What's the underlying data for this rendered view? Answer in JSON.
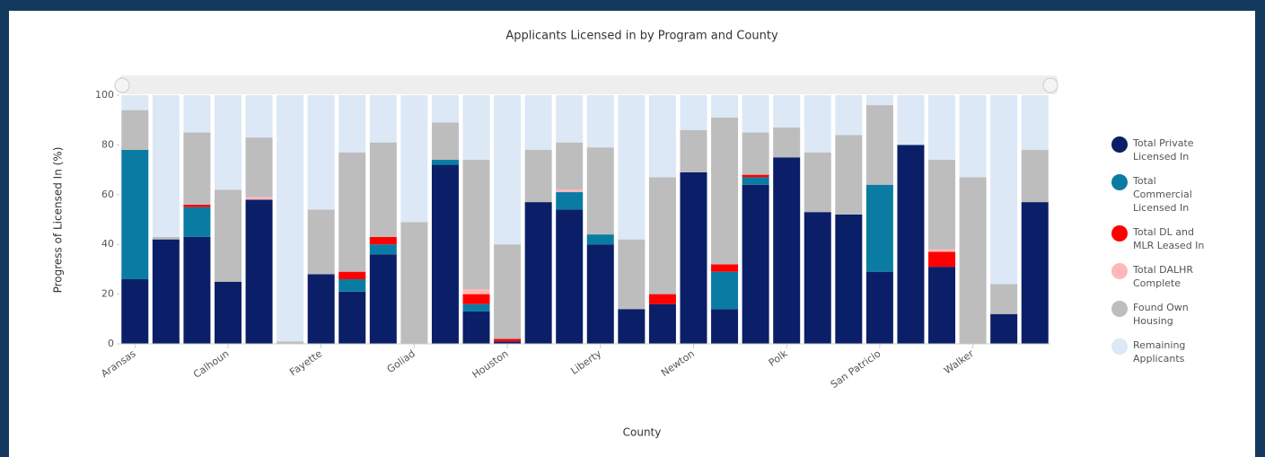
{
  "chart_data": {
    "type": "stacked_bar",
    "title": "Applicants Licensed in by Program and County",
    "x_label": "County",
    "y_label": "Progress of Licensed In (%)",
    "categories": [
      "Aransas",
      null,
      null,
      "Calhoun",
      null,
      null,
      "Fayette",
      null,
      null,
      "Goliad",
      null,
      null,
      "Houston",
      null,
      null,
      "Liberty",
      null,
      null,
      "Newton",
      null,
      null,
      "Polk",
      null,
      null,
      "San Patricio",
      null,
      null,
      "Walker",
      null,
      null
    ],
    "ylim": [
      0,
      100
    ],
    "yticks": [
      0,
      20,
      40,
      60,
      80,
      100
    ],
    "series": [
      {
        "name": "Total Private Licensed In",
        "color": "#0b1f68",
        "values": [
          26,
          42,
          43,
          25,
          58,
          0,
          28,
          21,
          36,
          0,
          72,
          13,
          1,
          57,
          54,
          40,
          14,
          16,
          69,
          14,
          64,
          75,
          53,
          52,
          29,
          80,
          31,
          0,
          12,
          57
        ]
      },
      {
        "name": "Total Commercial Licensed In",
        "color": "#0a7ca3",
        "values": [
          52,
          0,
          12,
          0,
          0,
          0,
          0,
          5,
          4,
          0,
          2,
          3,
          0,
          0,
          7,
          4,
          0,
          0,
          0,
          15,
          3,
          0,
          0,
          0,
          35,
          0,
          0,
          0,
          0,
          0
        ]
      },
      {
        "name": "Total DL and MLR Leased In",
        "color": "#ff0000",
        "values": [
          0,
          0,
          1,
          0,
          0,
          0,
          0,
          3,
          3,
          0,
          0,
          4,
          1,
          0,
          0,
          0,
          0,
          4,
          0,
          3,
          1,
          0,
          0,
          0,
          0,
          0,
          6,
          0,
          0,
          0
        ]
      },
      {
        "name": "Total DALHR Complete",
        "color": "#ffb8b8",
        "values": [
          0,
          0,
          0,
          0,
          1,
          0,
          0,
          0,
          0,
          0,
          0,
          2,
          0,
          0,
          1,
          0,
          0,
          0,
          0,
          0,
          0,
          0,
          0,
          0,
          0,
          0,
          1,
          0,
          0,
          0
        ]
      },
      {
        "name": "Found Own Housing",
        "color": "#bdbdbd",
        "values": [
          16,
          1,
          29,
          37,
          24,
          1,
          26,
          48,
          38,
          49,
          15,
          52,
          38,
          21,
          19,
          35,
          28,
          47,
          17,
          59,
          17,
          12,
          24,
          32,
          32,
          0,
          36,
          67,
          12,
          21
        ]
      },
      {
        "name": "Remaining Applicants",
        "color": "#dce8f6",
        "values": [
          6,
          57,
          15,
          38,
          17,
          99,
          46,
          23,
          19,
          51,
          11,
          26,
          60,
          22,
          19,
          21,
          58,
          33,
          14,
          9,
          15,
          13,
          23,
          16,
          4,
          20,
          26,
          33,
          76,
          22
        ]
      }
    ]
  }
}
